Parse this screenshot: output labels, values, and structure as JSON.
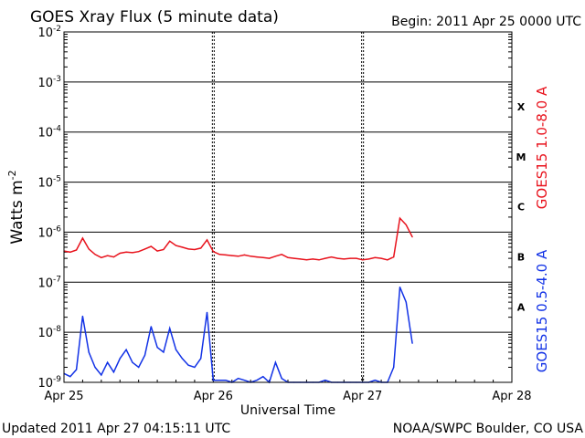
{
  "header": {
    "title": "GOES Xray Flux (5 minute data)",
    "begin": "Begin:  2011 Apr 25 0000 UTC"
  },
  "footer": {
    "updated": "Updated 2011 Apr 27 04:15:11 UTC",
    "credit": "NOAA/SWPC Boulder, CO USA"
  },
  "colors": {
    "long_channel": "#e8121c",
    "short_channel": "#1232e6",
    "axis": "#000000"
  },
  "chart_data": {
    "type": "line",
    "title": "GOES Xray Flux (5 minute data)",
    "xlabel": "Universal Time",
    "ylabel": "Watts m",
    "ylabel_superscript": "-2",
    "yscale": "log",
    "ylim": [
      1e-09,
      0.01
    ],
    "xlim": [
      "2011-04-25",
      "2011-04-28"
    ],
    "x_ticks": [
      "Apr 25",
      "Apr 26",
      "Apr 27",
      "Apr 28"
    ],
    "y_ticks": [
      {
        "base": "10",
        "exp": "-9",
        "value": 1e-09
      },
      {
        "base": "10",
        "exp": "-8",
        "value": 1e-08
      },
      {
        "base": "10",
        "exp": "-7",
        "value": 1e-07
      },
      {
        "base": "10",
        "exp": "-6",
        "value": 1e-06
      },
      {
        "base": "10",
        "exp": "-5",
        "value": 1e-05
      },
      {
        "base": "10",
        "exp": "-4",
        "value": 0.0001
      },
      {
        "base": "10",
        "exp": "-3",
        "value": 0.001
      },
      {
        "base": "10",
        "exp": "-2",
        "value": 0.01
      }
    ],
    "flare_classes": [
      {
        "label": "X",
        "value": 0.00032
      },
      {
        "label": "M",
        "value": 3.2e-05
      },
      {
        "label": "C",
        "value": 3.2e-06
      },
      {
        "label": "B",
        "value": 3.2e-07
      },
      {
        "label": "A",
        "value": 3.2e-08
      }
    ],
    "grid": "horizontal lines at each decade; dotted vertical lines at day boundaries",
    "series": [
      {
        "name": "GOES15 1.0-8.0 A",
        "color": "#e8121c",
        "x_hours": [
          0,
          1,
          2,
          3,
          4,
          5,
          6,
          7,
          8,
          9,
          10,
          11,
          12,
          13,
          14,
          15,
          16,
          17,
          18,
          19,
          20,
          21,
          22,
          23,
          24,
          25,
          26,
          27,
          28,
          29,
          30,
          31,
          32,
          33,
          34,
          35,
          36,
          37,
          38,
          39,
          40,
          41,
          42,
          43,
          44,
          45,
          46,
          47,
          48,
          49,
          50,
          51,
          52,
          53,
          54,
          55,
          56
        ],
        "y": [
          4.2e-07,
          4e-07,
          4.4e-07,
          7.6e-07,
          4.6e-07,
          3.6e-07,
          3.1e-07,
          3.4e-07,
          3.2e-07,
          3.8e-07,
          4e-07,
          3.9e-07,
          4.1e-07,
          4.6e-07,
          5.2e-07,
          4.2e-07,
          4.5e-07,
          6.6e-07,
          5.4e-07,
          5e-07,
          4.6e-07,
          4.5e-07,
          4.8e-07,
          7e-07,
          4.1e-07,
          3.6e-07,
          3.5e-07,
          3.4e-07,
          3.3e-07,
          3.5e-07,
          3.3e-07,
          3.2e-07,
          3.1e-07,
          3e-07,
          3.3e-07,
          3.6e-07,
          3.1e-07,
          3e-07,
          2.9e-07,
          2.8e-07,
          2.9e-07,
          2.8e-07,
          3e-07,
          3.2e-07,
          3e-07,
          2.9e-07,
          3e-07,
          3e-07,
          2.8e-07,
          2.9e-07,
          3.1e-07,
          3e-07,
          2.8e-07,
          3.2e-07,
          1.9e-06,
          1.4e-06,
          8e-07
        ]
      },
      {
        "name": "GOES15 0.5-4.0 A",
        "color": "#1232e6",
        "x_hours": [
          0,
          1,
          2,
          3,
          4,
          5,
          6,
          7,
          8,
          9,
          10,
          11,
          12,
          13,
          14,
          15,
          16,
          17,
          18,
          19,
          20,
          21,
          22,
          23,
          24,
          25,
          26,
          27,
          28,
          29,
          30,
          31,
          32,
          33,
          34,
          35,
          36,
          37,
          38,
          39,
          40,
          41,
          42,
          43,
          44,
          45,
          46,
          47,
          48,
          49,
          50,
          51,
          52,
          53,
          54,
          55,
          56
        ],
        "y": [
          1.5e-09,
          1.3e-09,
          1.8e-09,
          2.1e-08,
          4e-09,
          2e-09,
          1.4e-09,
          2.5e-09,
          1.6e-09,
          3e-09,
          4.5e-09,
          2.5e-09,
          2e-09,
          3.5e-09,
          1.3e-08,
          5e-09,
          4e-09,
          1.2e-08,
          4.5e-09,
          3e-09,
          2.2e-09,
          2e-09,
          3e-09,
          2.5e-08,
          1.1e-09,
          1.1e-09,
          1.1e-09,
          1e-09,
          1.2e-09,
          1.1e-09,
          1e-09,
          1.1e-09,
          1.3e-09,
          1e-09,
          2.5e-09,
          1.2e-09,
          1e-09,
          1e-09,
          1e-09,
          1e-09,
          1e-09,
          1e-09,
          1.1e-09,
          1e-09,
          1e-09,
          1e-09,
          1e-09,
          1e-09,
          1e-09,
          1e-09,
          1.1e-09,
          1e-09,
          1e-09,
          2e-09,
          8e-08,
          4e-08,
          6e-09
        ]
      }
    ]
  }
}
